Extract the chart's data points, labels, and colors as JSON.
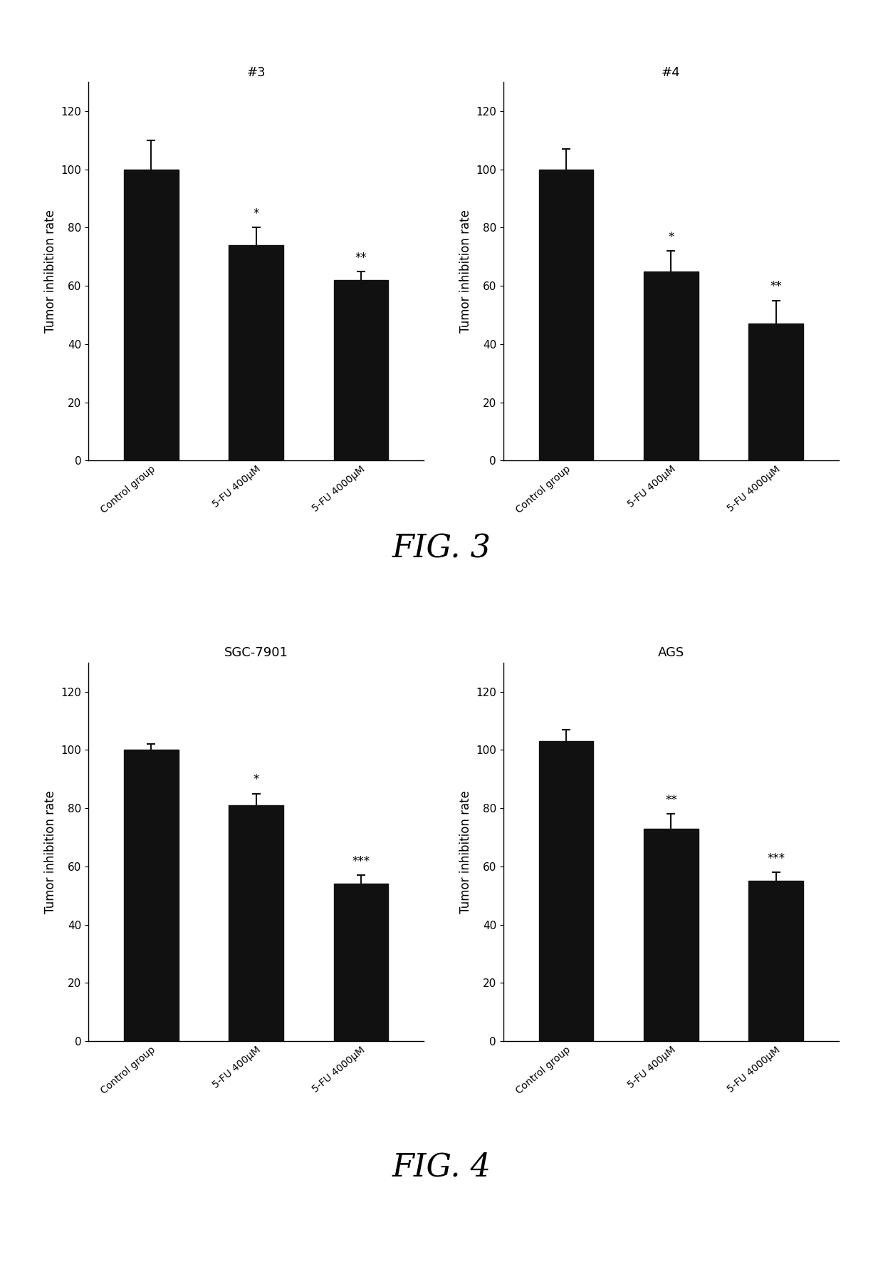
{
  "fig3": {
    "left": {
      "title": "#3",
      "categories": [
        "Control group",
        "5-FU 400μM",
        "5-FU 4000μM"
      ],
      "values": [
        100,
        74,
        62
      ],
      "errors": [
        10,
        6,
        3
      ],
      "sig_labels": [
        "",
        "*",
        "**"
      ],
      "ylim": [
        0,
        130
      ],
      "yticks": [
        0,
        20,
        40,
        60,
        80,
        100,
        120
      ],
      "ylabel": "Tumor inhibition rate"
    },
    "right": {
      "title": "#4",
      "categories": [
        "Control group",
        "5-FU 400μM",
        "5-FU 4000μM"
      ],
      "values": [
        100,
        65,
        47
      ],
      "errors": [
        7,
        7,
        8
      ],
      "sig_labels": [
        "",
        "*",
        "**"
      ],
      "ylim": [
        0,
        130
      ],
      "yticks": [
        0,
        20,
        40,
        60,
        80,
        100,
        120
      ],
      "ylabel": "Tumor inhibition rate"
    }
  },
  "fig4": {
    "left": {
      "title": "SGC-7901",
      "categories": [
        "Control group",
        "5-FU 400μM",
        "5-FU 4000μM"
      ],
      "values": [
        100,
        81,
        54
      ],
      "errors": [
        2,
        4,
        3
      ],
      "sig_labels": [
        "",
        "*",
        "***"
      ],
      "ylim": [
        0,
        130
      ],
      "yticks": [
        0,
        20,
        40,
        60,
        80,
        100,
        120
      ],
      "ylabel": "Tumor inhibition rate"
    },
    "right": {
      "title": "AGS",
      "categories": [
        "Control group",
        "5-FU 400μM",
        "5-FU 4000μM"
      ],
      "values": [
        103,
        73,
        55
      ],
      "errors": [
        4,
        5,
        3
      ],
      "sig_labels": [
        "",
        "**",
        "***"
      ],
      "ylim": [
        0,
        130
      ],
      "yticks": [
        0,
        20,
        40,
        60,
        80,
        100,
        120
      ],
      "ylabel": "Tumor inhibition rate"
    }
  },
  "fig3_label": "FIG. 3",
  "fig4_label": "FIG. 4",
  "bar_color": "#111111",
  "bar_width": 0.52,
  "ecolor": "#111111",
  "capsize": 4,
  "background_color": "#ffffff",
  "tick_fontsize": 11,
  "label_fontsize": 12,
  "title_fontsize": 13,
  "sig_fontsize": 12,
  "figlabel_fontsize": 32,
  "xlabel_rotation": 40,
  "xlabel_ha": "right",
  "xlabel_fontsize": 10
}
